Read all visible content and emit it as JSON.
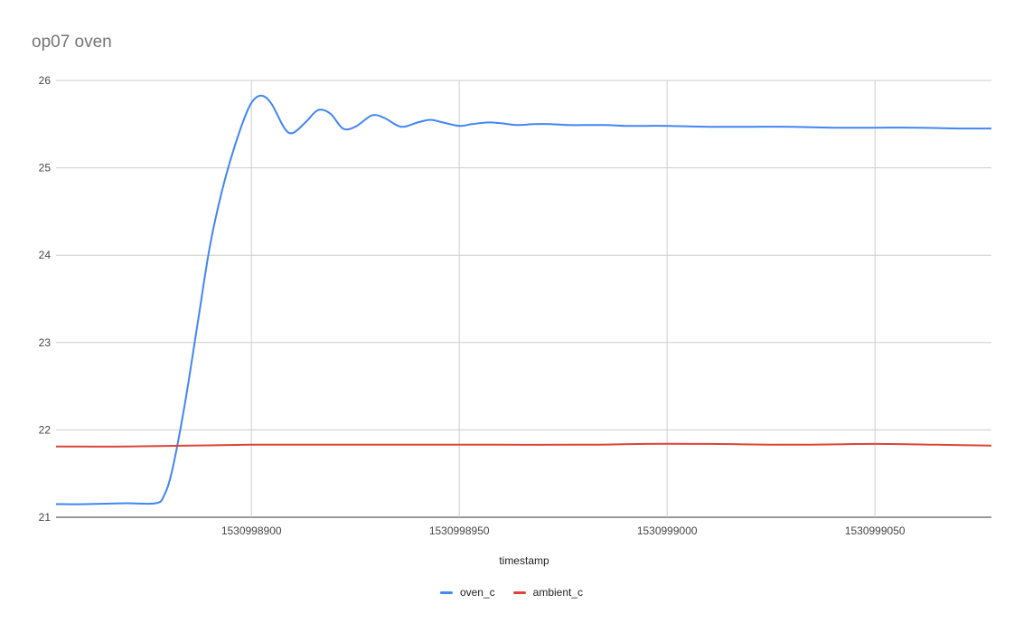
{
  "chart_data": {
    "type": "line",
    "title": "op07 oven",
    "xlabel": "timestamp",
    "ylabel": "",
    "xlim": [
      1530998853,
      1530999078
    ],
    "ylim": [
      21,
      26
    ],
    "x_ticks": [
      1530998900,
      1530998950,
      1530999000,
      1530999050
    ],
    "y_ticks": [
      21,
      22,
      23,
      24,
      25,
      26
    ],
    "grid": true,
    "legend_position": "bottom",
    "series": [
      {
        "name": "oven_c",
        "color": "#4285f4",
        "x": [
          1530998853,
          1530998860,
          1530998870,
          1530998877,
          1530998879,
          1530998881,
          1530998884,
          1530998887,
          1530998890,
          1530998893,
          1530998896,
          1530998899,
          1530998901,
          1530998903,
          1530998905,
          1530998908,
          1530998910,
          1530998913,
          1530998916,
          1530998919,
          1530998922,
          1530998925,
          1530998929,
          1530998932,
          1530998936,
          1530998940,
          1530998943,
          1530998946,
          1530998950,
          1530998953,
          1530998957,
          1530998960,
          1530998964,
          1530998968,
          1530998972,
          1530998976,
          1530998980,
          1530998985,
          1530998990,
          1530998995,
          1530999000,
          1530999010,
          1530999020,
          1530999030,
          1530999040,
          1530999050,
          1530999060,
          1530999070,
          1530999078
        ],
        "y": [
          21.15,
          21.15,
          21.16,
          21.16,
          21.25,
          21.55,
          22.3,
          23.2,
          24.1,
          24.75,
          25.25,
          25.65,
          25.8,
          25.82,
          25.72,
          25.45,
          25.4,
          25.52,
          25.66,
          25.62,
          25.45,
          25.47,
          25.6,
          25.57,
          25.47,
          25.52,
          25.55,
          25.52,
          25.48,
          25.5,
          25.52,
          25.51,
          25.49,
          25.5,
          25.5,
          25.49,
          25.49,
          25.49,
          25.48,
          25.48,
          25.48,
          25.47,
          25.47,
          25.47,
          25.46,
          25.46,
          25.46,
          25.45,
          25.45
        ]
      },
      {
        "name": "ambient_c",
        "color": "#db4437",
        "x": [
          1530998853,
          1530998870,
          1530998885,
          1530998900,
          1530998920,
          1530998940,
          1530998960,
          1530998980,
          1530998995,
          1530999010,
          1530999030,
          1530999050,
          1530999065,
          1530999078
        ],
        "y": [
          21.81,
          21.81,
          21.82,
          21.83,
          21.83,
          21.83,
          21.83,
          21.83,
          21.84,
          21.84,
          21.83,
          21.84,
          21.83,
          21.82
        ]
      }
    ]
  }
}
